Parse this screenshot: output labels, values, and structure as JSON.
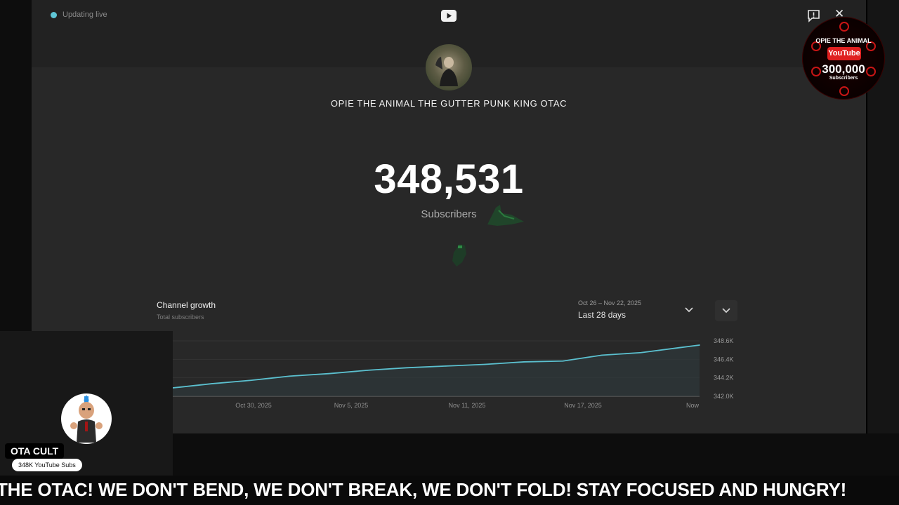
{
  "status": {
    "live_label": "Updating live"
  },
  "channel": {
    "name": "OPIE THE ANIMAL THE GUTTER PUNK KING OTAC"
  },
  "counter": {
    "value": "348,531",
    "label": "Subscribers"
  },
  "growth": {
    "title": "Channel growth",
    "subtitle": "Total subscribers",
    "date_range": "Oct 26 – Nov 22, 2025",
    "period_label": "Last 28 days"
  },
  "chart_data": {
    "type": "line",
    "title": "Channel growth",
    "subtitle": "Total subscribers",
    "xlabel": "",
    "ylabel": "",
    "x_tick_labels": [
      "Oct 30, 2025",
      "Nov 5, 2025",
      "Nov 11, 2025",
      "Nov 17, 2025",
      "Now"
    ],
    "y_tick_labels": [
      "348.6K",
      "346.4K",
      "344.2K",
      "342.0K"
    ],
    "ylim": [
      342000,
      348600
    ],
    "grid": true,
    "series": [
      {
        "color": "#5bc0cf",
        "x": [
          "Oct 26, 2025",
          "Oct 28, 2025",
          "Oct 30, 2025",
          "Nov 1, 2025",
          "Nov 3, 2025",
          "Nov 5, 2025",
          "Nov 7, 2025",
          "Nov 9, 2025",
          "Nov 11, 2025",
          "Nov 13, 2025",
          "Nov 15, 2025",
          "Nov 17, 2025",
          "Nov 19, 2025",
          "Nov 21, 2025",
          "Nov 22, 2025"
        ],
        "values": [
          343000,
          343500,
          343900,
          344400,
          344700,
          345100,
          345400,
          345600,
          345800,
          346100,
          346200,
          346900,
          347200,
          347800,
          348100
        ]
      }
    ]
  },
  "overlay": {
    "badge_top": "OPIE THE ANIMAL",
    "badge_platform": "YouTube",
    "badge_number": "300,000",
    "badge_small": "Subscribers",
    "streamer_name": "OTA CULT",
    "streamer_subs": "348K YouTube Subs",
    "ticker": "THE OTAC! WE DON'T BEND, WE DON'T BREAK, WE DON'T FOLD! STAY FOCUSED AND HUNGRY!"
  },
  "colors": {
    "accent": "#5bc0cf",
    "badge_red": "#e02020"
  },
  "icons": [
    "youtube-icon",
    "feedback-icon",
    "close-icon",
    "chevron-down-icon"
  ]
}
